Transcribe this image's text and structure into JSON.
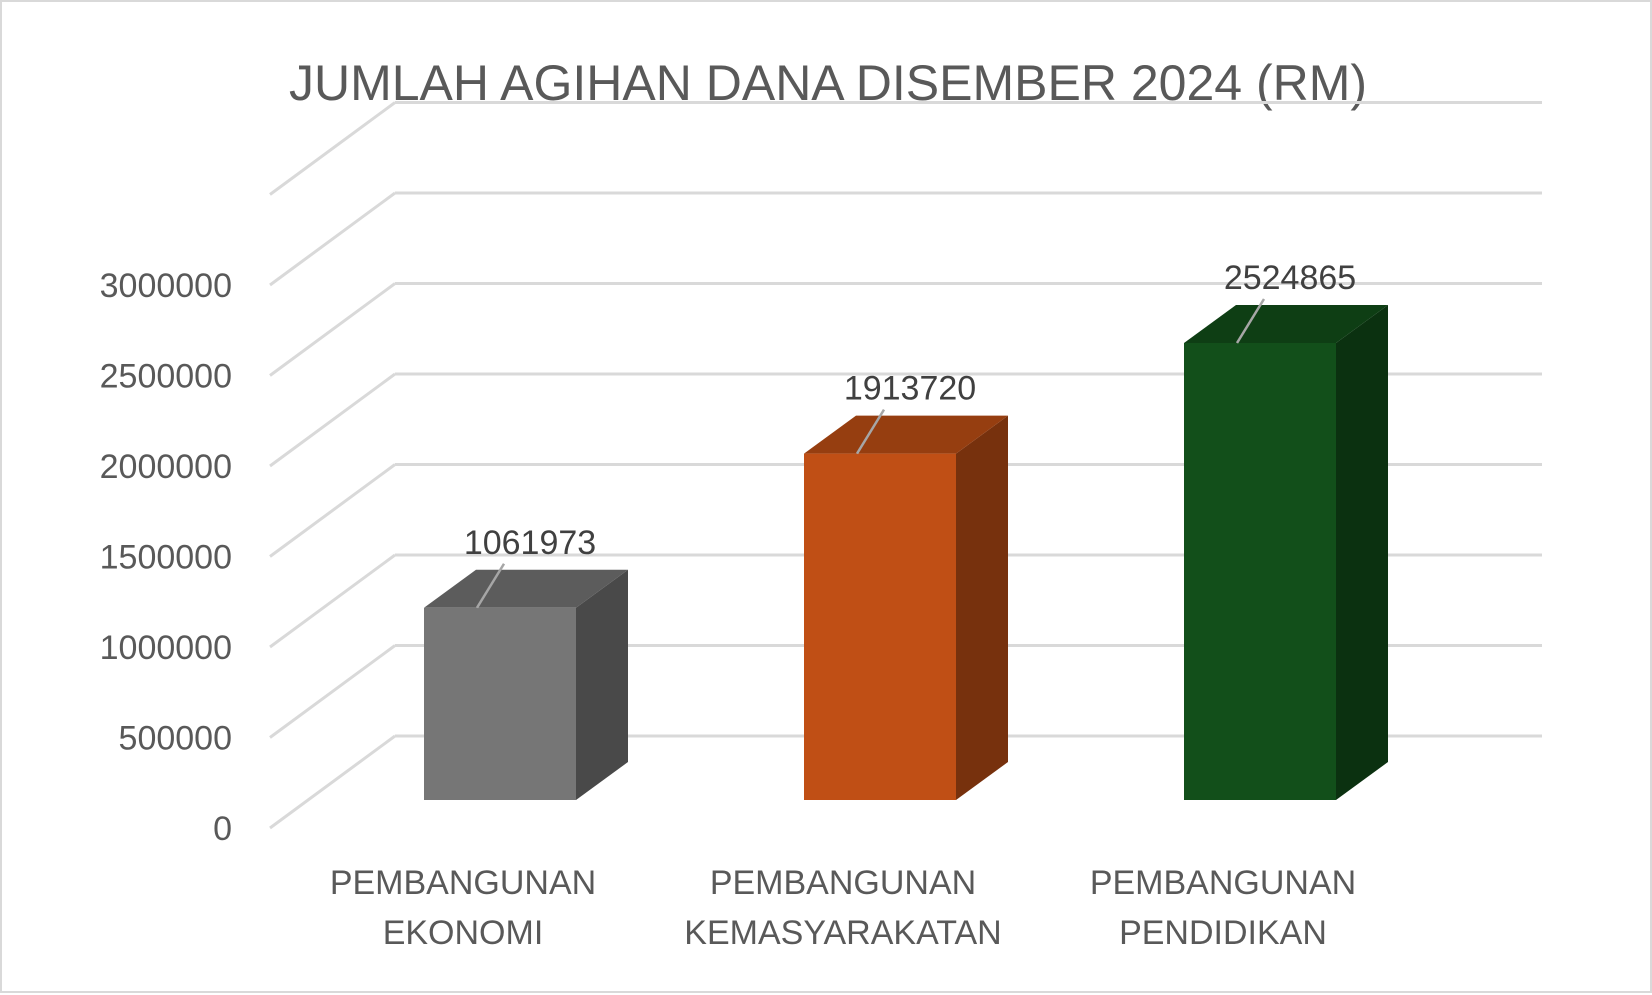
{
  "chart_data": {
    "type": "bar",
    "title": "JUMLAH AGIHAN DANA DISEMBER 2024 (RM)",
    "xlabel": "",
    "ylabel": "",
    "ylim": [
      0,
      3500000
    ],
    "yticks": [
      "0",
      "500000",
      "1000000",
      "1500000",
      "2000000",
      "2500000",
      "3000000"
    ],
    "ytick_values": [
      0,
      500000,
      1000000,
      1500000,
      2000000,
      2500000,
      3000000
    ],
    "categories": [
      [
        "PEMBANGUNAN",
        "EKONOMI"
      ],
      [
        "PEMBANGUNAN",
        "KEMASYARAKATAN"
      ],
      [
        "PEMBANGUNAN",
        "PENDIDIKAN"
      ]
    ],
    "values": [
      1061973,
      1913720,
      2524865
    ],
    "data_labels": [
      "1061973",
      "1913720",
      "2524865"
    ],
    "bar_colors": [
      "#767676",
      "#c04f15",
      "#124f1a"
    ],
    "style": "3d-column",
    "grid": true,
    "legend": "none"
  }
}
